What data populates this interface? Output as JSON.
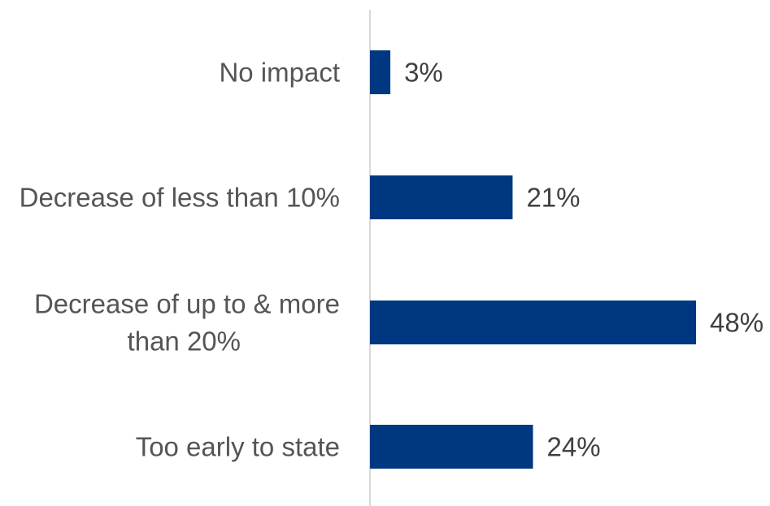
{
  "chart_data": {
    "type": "bar",
    "orientation": "horizontal",
    "categories": [
      [
        "No impact"
      ],
      [
        "Decrease of less than 10%"
      ],
      [
        "Decrease of up to & more",
        "than 20%"
      ],
      [
        "Too early to state"
      ]
    ],
    "values": [
      3,
      21,
      48,
      24
    ],
    "value_labels": [
      "3%",
      "21%",
      "48%",
      "24%"
    ],
    "unit": "%",
    "xlim": [
      0,
      48
    ],
    "grid": false,
    "legend": "none",
    "title": "",
    "xlabel": "",
    "ylabel": ""
  },
  "colors": {
    "bar": "#003781",
    "axis": "#d9d9d9",
    "category_text": "#555555",
    "value_text": "#404040"
  }
}
